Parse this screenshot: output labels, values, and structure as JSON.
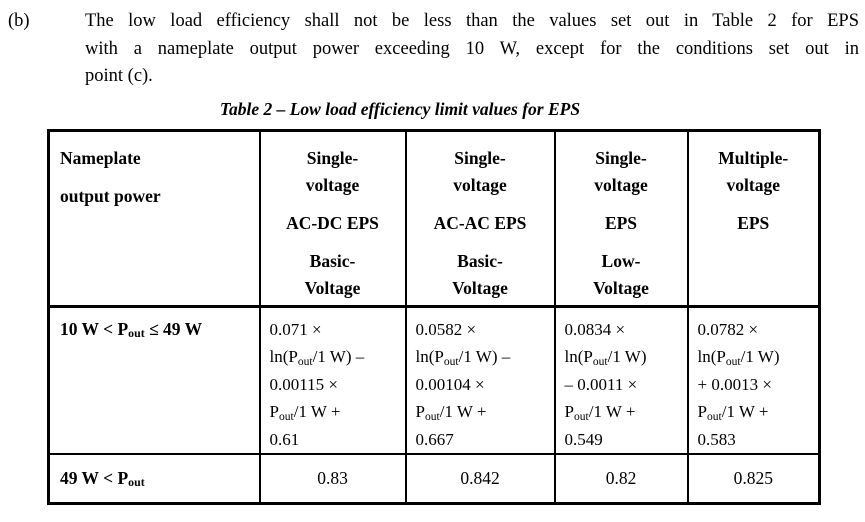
{
  "colors": {
    "text": "#000000",
    "background": "#ffffff",
    "table_border": "#000000"
  },
  "clause": {
    "label": "(b)",
    "lines": [
      "The low load efficiency shall not be less than the values set out in Table 2 for EPS",
      "with a nameplate output power exceeding 10 W, except for the conditions set out in",
      "point (c)."
    ]
  },
  "table": {
    "title": "Table 2 – Low load efficiency limit values for EPS",
    "headers": [
      [
        [
          "Nameplate"
        ],
        [
          "output power"
        ]
      ],
      [
        [
          "Single-",
          "voltage"
        ],
        [
          "AC-DC EPS"
        ],
        [
          "Basic-",
          "Voltage"
        ]
      ],
      [
        [
          "Single-",
          "voltage"
        ],
        [
          "AC-AC EPS"
        ],
        [
          "Basic-",
          "Voltage"
        ]
      ],
      [
        [
          "Single-",
          "voltage"
        ],
        [
          "EPS"
        ],
        [
          "Low-",
          "Voltage"
        ]
      ],
      [
        [
          "Multiple-",
          "voltage"
        ],
        [
          "EPS"
        ]
      ]
    ],
    "rows": [
      {
        "range": "10 W < P~out~ ≤ 49 W",
        "formulas": [
          [
            "0.071 ×",
            "ln(P~out~/1 W) –",
            "0.00115 ×",
            "P~out~/1 W +",
            "0.61"
          ],
          [
            "0.0582 ×",
            "ln(P~out~/1 W) –",
            "0.00104 ×",
            "P~out~/1 W +",
            "0.667"
          ],
          [
            "0.0834 ×",
            "ln(P~out~/1 W)",
            "– 0.0011 ×",
            "P~out~/1 W +",
            "0.549"
          ],
          [
            "0.0782 ×",
            "ln(P~out~/1 W)",
            "+ 0.0013 ×",
            "P~out~/1 W +",
            "0.583"
          ]
        ]
      },
      {
        "range": "49 W < P~out~",
        "values": [
          "0.83",
          "0.842",
          "0.82",
          "0.825"
        ]
      }
    ]
  }
}
